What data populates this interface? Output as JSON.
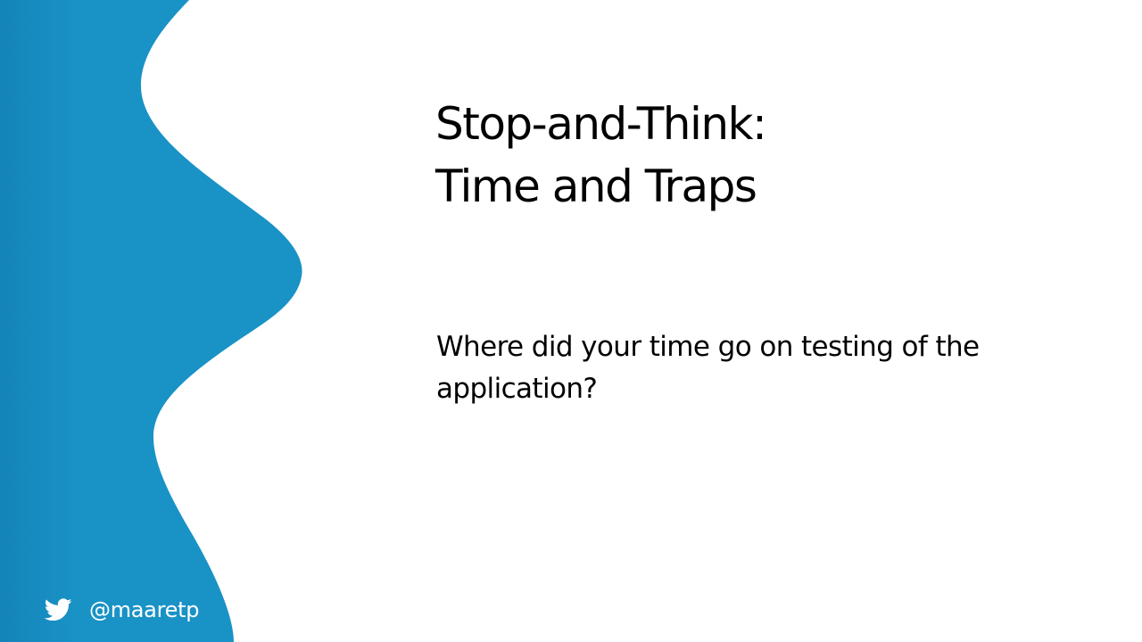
{
  "slide": {
    "title_line1": "Stop-and-Think:",
    "title_line2": "Time and Traps",
    "body": "Where did your time go on testing of the application?"
  },
  "footer": {
    "icon": "twitter-icon",
    "handle": "@maaretp"
  },
  "colors": {
    "background": "#ffffff",
    "wave_blue": "#1992c6",
    "wave_blue_dark": "#1584b8",
    "text": "#000000",
    "footer_text": "#ffffff"
  }
}
